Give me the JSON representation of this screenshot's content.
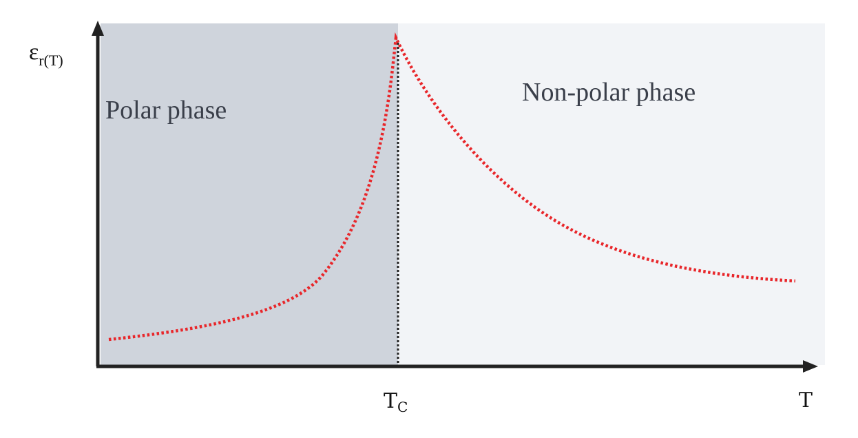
{
  "diagram": {
    "y_axis_symbol": "ε",
    "y_axis_subscript": "r(T)",
    "x_axis_symbol": "T",
    "tc_symbol": "T",
    "tc_subscript": "C",
    "polar_phase_label": "Polar phase",
    "nonpolar_phase_label": "Non-polar phase",
    "colors": {
      "polar_region": "#cfd4dc",
      "nonpolar_region": "#f2f4f7",
      "curve": "#e8262a",
      "tc_line": "#222222",
      "axis": "#222222"
    }
  }
}
